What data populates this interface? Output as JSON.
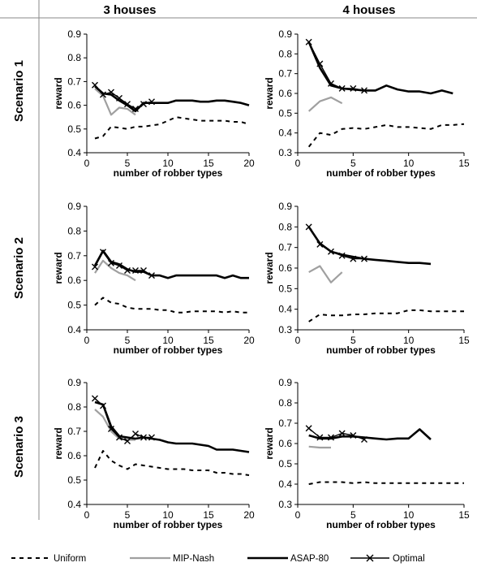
{
  "figure": {
    "col_titles": [
      "3 houses",
      "4 houses"
    ],
    "row_titles": [
      "Scenario 1",
      "Scenario 2",
      "Scenario 3"
    ]
  },
  "legend": [
    {
      "name": "Uniform",
      "style": "dashed",
      "color": "#000000"
    },
    {
      "name": "MIP-Nash",
      "style": "solid",
      "color": "#a0a0a0"
    },
    {
      "name": "ASAP-80",
      "style": "solid",
      "color": "#000000"
    },
    {
      "name": "Optimal",
      "style": "solid-x",
      "color": "#000000"
    }
  ],
  "chart_data": [
    {
      "type": "line",
      "row": 0,
      "col": 0,
      "xlabel": "number of robber types",
      "ylabel": "reward",
      "xlim": [
        0,
        20
      ],
      "ylim": [
        0.4,
        0.9
      ],
      "xticks": [
        "0",
        "5",
        "10",
        "15",
        "20"
      ],
      "yticks": [
        "0.4",
        "0.5",
        "0.6",
        "0.7",
        "0.8",
        "0.9"
      ],
      "series": [
        {
          "name": "Uniform",
          "x": [
            1,
            2,
            3,
            4,
            5,
            6,
            7,
            8,
            9,
            10,
            11,
            12,
            13,
            14,
            15,
            16,
            17,
            18,
            19,
            20
          ],
          "y": [
            0.46,
            0.47,
            0.51,
            0.505,
            0.5,
            0.51,
            0.51,
            0.515,
            0.52,
            0.535,
            0.55,
            0.545,
            0.54,
            0.535,
            0.535,
            0.535,
            0.535,
            0.53,
            0.53,
            0.52
          ]
        },
        {
          "name": "MIP-Nash",
          "x": [
            1,
            2,
            3,
            4,
            5,
            6
          ],
          "y": [
            0.67,
            0.64,
            0.56,
            0.59,
            0.585,
            0.56
          ]
        },
        {
          "name": "ASAP-80",
          "x": [
            1,
            2,
            3,
            4,
            5,
            6,
            7,
            8,
            9,
            10,
            11,
            12,
            13,
            14,
            15,
            16,
            17,
            18,
            19,
            20
          ],
          "y": [
            0.68,
            0.65,
            0.645,
            0.62,
            0.6,
            0.575,
            0.61,
            0.61,
            0.61,
            0.61,
            0.62,
            0.62,
            0.62,
            0.615,
            0.615,
            0.62,
            0.62,
            0.615,
            0.61,
            0.6
          ]
        },
        {
          "name": "Optimal",
          "x": [
            1,
            2,
            3,
            4,
            5,
            6,
            7,
            8
          ],
          "y": [
            0.685,
            0.645,
            0.655,
            0.63,
            0.605,
            0.585,
            0.605,
            0.615
          ]
        }
      ]
    },
    {
      "type": "line",
      "row": 0,
      "col": 1,
      "xlabel": "number of robber types",
      "ylabel": "reward",
      "xlim": [
        0,
        15
      ],
      "ylim": [
        0.3,
        0.9
      ],
      "xticks": [
        "0",
        "5",
        "10",
        "15"
      ],
      "yticks": [
        "0.3",
        "0.4",
        "0.5",
        "0.6",
        "0.7",
        "0.8",
        "0.9"
      ],
      "series": [
        {
          "name": "Uniform",
          "x": [
            1,
            2,
            3,
            4,
            5,
            6,
            7,
            8,
            9,
            10,
            11,
            12,
            13,
            14,
            15
          ],
          "y": [
            0.33,
            0.4,
            0.39,
            0.42,
            0.425,
            0.42,
            0.43,
            0.44,
            0.43,
            0.43,
            0.425,
            0.42,
            0.44,
            0.44,
            0.445
          ]
        },
        {
          "name": "MIP-Nash",
          "x": [
            1,
            2,
            3,
            4
          ],
          "y": [
            0.51,
            0.56,
            0.58,
            0.55
          ]
        },
        {
          "name": "ASAP-80",
          "x": [
            1,
            2,
            3,
            4,
            5,
            6,
            7,
            8,
            9,
            10,
            11,
            12,
            13,
            14
          ],
          "y": [
            0.86,
            0.73,
            0.64,
            0.625,
            0.62,
            0.615,
            0.615,
            0.64,
            0.62,
            0.61,
            0.61,
            0.6,
            0.615,
            0.6
          ]
        },
        {
          "name": "Optimal",
          "x": [
            1,
            2,
            3,
            4,
            5,
            6
          ],
          "y": [
            0.86,
            0.75,
            0.65,
            0.625,
            0.625,
            0.615
          ]
        }
      ]
    },
    {
      "type": "line",
      "row": 1,
      "col": 0,
      "xlabel": "number of robber types",
      "ylabel": "reward",
      "xlim": [
        0,
        20
      ],
      "ylim": [
        0.4,
        0.9
      ],
      "xticks": [
        "0",
        "5",
        "10",
        "15",
        "20"
      ],
      "yticks": [
        "0.4",
        "0.5",
        "0.6",
        "0.7",
        "0.8",
        "0.9"
      ],
      "series": [
        {
          "name": "Uniform",
          "x": [
            1,
            2,
            3,
            4,
            5,
            6,
            7,
            8,
            9,
            10,
            11,
            12,
            13,
            14,
            15,
            16,
            17,
            18,
            19,
            20
          ],
          "y": [
            0.5,
            0.53,
            0.51,
            0.505,
            0.49,
            0.485,
            0.485,
            0.485,
            0.48,
            0.48,
            0.47,
            0.47,
            0.475,
            0.475,
            0.475,
            0.475,
            0.47,
            0.475,
            0.47,
            0.47
          ]
        },
        {
          "name": "MIP-Nash",
          "x": [
            1,
            2,
            3,
            4,
            5,
            6
          ],
          "y": [
            0.63,
            0.68,
            0.65,
            0.63,
            0.62,
            0.6
          ]
        },
        {
          "name": "ASAP-80",
          "x": [
            1,
            2,
            3,
            4,
            5,
            6,
            7,
            8,
            9,
            10,
            11,
            12,
            13,
            14,
            15,
            16,
            17,
            18,
            19,
            20
          ],
          "y": [
            0.66,
            0.72,
            0.675,
            0.665,
            0.645,
            0.635,
            0.635,
            0.62,
            0.62,
            0.61,
            0.62,
            0.62,
            0.62,
            0.62,
            0.62,
            0.62,
            0.61,
            0.62,
            0.61,
            0.61
          ]
        },
        {
          "name": "Optimal",
          "x": [
            1,
            2,
            3,
            4,
            5,
            6,
            7,
            8
          ],
          "y": [
            0.655,
            0.715,
            0.67,
            0.66,
            0.64,
            0.64,
            0.64,
            0.62
          ]
        }
      ]
    },
    {
      "type": "line",
      "row": 1,
      "col": 1,
      "xlabel": "number of robber types",
      "ylabel": "reward",
      "xlim": [
        0,
        15
      ],
      "ylim": [
        0.3,
        0.9
      ],
      "xticks": [
        "0",
        "5",
        "10",
        "15"
      ],
      "yticks": [
        "0.3",
        "0.4",
        "0.5",
        "0.6",
        "0.7",
        "0.8",
        "0.9"
      ],
      "series": [
        {
          "name": "Uniform",
          "x": [
            1,
            2,
            3,
            4,
            5,
            6,
            7,
            8,
            9,
            10,
            11,
            12,
            13,
            14,
            15
          ],
          "y": [
            0.34,
            0.375,
            0.37,
            0.37,
            0.375,
            0.375,
            0.38,
            0.38,
            0.38,
            0.395,
            0.395,
            0.39,
            0.39,
            0.39,
            0.39
          ]
        },
        {
          "name": "MIP-Nash",
          "x": [
            1,
            2,
            3,
            4
          ],
          "y": [
            0.58,
            0.61,
            0.53,
            0.58
          ]
        },
        {
          "name": "ASAP-80",
          "x": [
            1,
            2,
            3,
            4,
            5,
            6,
            7,
            8,
            9,
            10,
            11,
            12
          ],
          "y": [
            0.8,
            0.72,
            0.68,
            0.665,
            0.655,
            0.645,
            0.64,
            0.635,
            0.63,
            0.625,
            0.625,
            0.62
          ]
        },
        {
          "name": "Optimal",
          "x": [
            1,
            2,
            3,
            4,
            5,
            6
          ],
          "y": [
            0.8,
            0.715,
            0.68,
            0.66,
            0.645,
            0.645
          ]
        }
      ]
    },
    {
      "type": "line",
      "row": 2,
      "col": 0,
      "xlabel": "number of robber types",
      "ylabel": "reward",
      "xlim": [
        0,
        20
      ],
      "ylim": [
        0.4,
        0.9
      ],
      "xticks": [
        "0",
        "5",
        "10",
        "15",
        "20"
      ],
      "yticks": [
        "0.4",
        "0.5",
        "0.6",
        "0.7",
        "0.8",
        "0.9"
      ],
      "series": [
        {
          "name": "Uniform",
          "x": [
            1,
            2,
            3,
            4,
            5,
            6,
            7,
            8,
            9,
            10,
            11,
            12,
            13,
            14,
            15,
            16,
            17,
            18,
            19,
            20
          ],
          "y": [
            0.55,
            0.62,
            0.58,
            0.56,
            0.545,
            0.565,
            0.56,
            0.555,
            0.55,
            0.545,
            0.545,
            0.545,
            0.54,
            0.54,
            0.54,
            0.53,
            0.53,
            0.525,
            0.525,
            0.52
          ]
        },
        {
          "name": "MIP-Nash",
          "x": [
            1,
            2,
            3,
            4,
            5,
            6
          ],
          "y": [
            0.79,
            0.76,
            0.7,
            0.67,
            0.665,
            0.665
          ]
        },
        {
          "name": "ASAP-80",
          "x": [
            1,
            2,
            3,
            4,
            5,
            6,
            7,
            8,
            9,
            10,
            11,
            12,
            13,
            14,
            15,
            16,
            17,
            18,
            19,
            20
          ],
          "y": [
            0.82,
            0.81,
            0.72,
            0.68,
            0.675,
            0.67,
            0.675,
            0.67,
            0.665,
            0.655,
            0.65,
            0.65,
            0.65,
            0.645,
            0.64,
            0.625,
            0.625,
            0.625,
            0.62,
            0.615
          ]
        },
        {
          "name": "Optimal",
          "x": [
            1,
            2,
            3,
            4,
            5,
            6,
            7,
            8
          ],
          "y": [
            0.835,
            0.805,
            0.71,
            0.675,
            0.66,
            0.69,
            0.675,
            0.675
          ]
        }
      ]
    },
    {
      "type": "line",
      "row": 2,
      "col": 1,
      "xlabel": "number of robber types",
      "ylabel": "reward",
      "xlim": [
        0,
        15
      ],
      "ylim": [
        0.3,
        0.9
      ],
      "xticks": [
        "0",
        "5",
        "10",
        "15"
      ],
      "yticks": [
        "0.3",
        "0.4",
        "0.5",
        "0.6",
        "0.7",
        "0.8",
        "0.9"
      ],
      "series": [
        {
          "name": "Uniform",
          "x": [
            1,
            2,
            3,
            4,
            5,
            6,
            7,
            8,
            9,
            10,
            11,
            12,
            13,
            14,
            15
          ],
          "y": [
            0.4,
            0.41,
            0.41,
            0.41,
            0.405,
            0.41,
            0.405,
            0.405,
            0.405,
            0.405,
            0.405,
            0.405,
            0.405,
            0.405,
            0.405
          ]
        },
        {
          "name": "MIP-Nash",
          "x": [
            1,
            2,
            3
          ],
          "y": [
            0.585,
            0.58,
            0.58
          ]
        },
        {
          "name": "ASAP-80",
          "x": [
            1,
            2,
            3,
            4,
            5,
            6,
            7,
            8,
            9,
            10,
            11,
            12
          ],
          "y": [
            0.64,
            0.625,
            0.625,
            0.635,
            0.635,
            0.63,
            0.625,
            0.62,
            0.625,
            0.625,
            0.67,
            0.62
          ]
        },
        {
          "name": "Optimal",
          "x": [
            1,
            2,
            3,
            4,
            5,
            6
          ],
          "y": [
            0.675,
            0.63,
            0.63,
            0.65,
            0.64,
            0.62
          ]
        }
      ]
    }
  ]
}
